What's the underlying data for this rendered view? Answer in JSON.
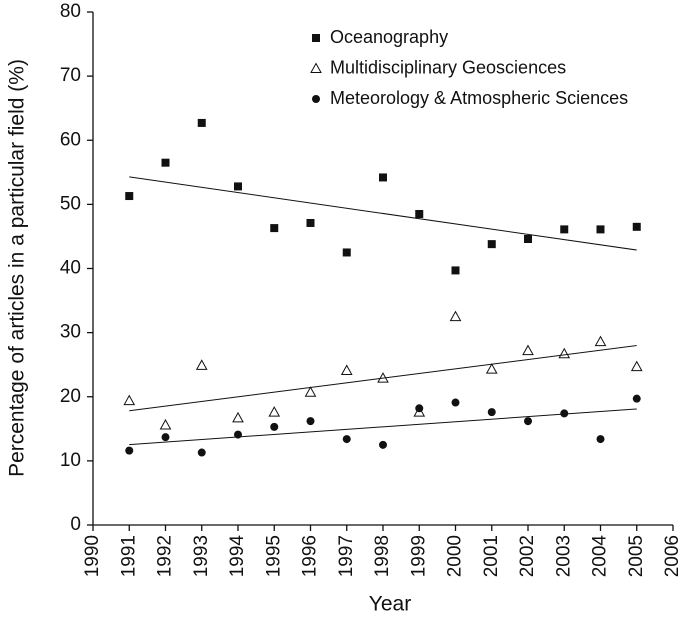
{
  "chart_data": {
    "type": "scatter",
    "x_label": "Year",
    "y_label": "Percentage of articles in a particular field (%)",
    "x": [
      1991,
      1992,
      1993,
      1994,
      1995,
      1996,
      1997,
      1998,
      1999,
      2000,
      2001,
      2002,
      2003,
      2004,
      2005
    ],
    "series": [
      {
        "name": "Oceanography",
        "color": "#111111",
        "marker": "square",
        "values": [
          51.3,
          56.5,
          62.7,
          52.8,
          46.3,
          47.1,
          42.5,
          54.2,
          48.5,
          39.7,
          43.8,
          44.6,
          46.1,
          46.1,
          46.5
        ]
      },
      {
        "name": "Multidisciplinary Geosciences",
        "color": "#111111",
        "marker": "triangle-open",
        "values": [
          19.4,
          15.6,
          24.9,
          16.7,
          17.6,
          20.7,
          24.1,
          22.9,
          17.6,
          32.5,
          24.3,
          27.2,
          26.7,
          28.6,
          24.7
        ]
      },
      {
        "name": "Meteorology & Atmospheric Sciences",
        "color": "#111111",
        "marker": "circle",
        "values": [
          11.6,
          13.7,
          11.3,
          14.1,
          15.3,
          16.2,
          13.4,
          12.5,
          18.2,
          19.1,
          17.6,
          16.2,
          17.4,
          13.4,
          19.7
        ]
      }
    ],
    "trendline": true,
    "xlim": [
      1990,
      2006
    ],
    "xticks": [
      1990,
      1991,
      1992,
      1993,
      1994,
      1995,
      1996,
      1997,
      1998,
      1999,
      2000,
      2001,
      2002,
      2003,
      2004,
      2005,
      2006
    ],
    "ylim": [
      0,
      80
    ],
    "yticks": [
      0,
      10,
      20,
      30,
      40,
      50,
      60,
      70,
      80
    ],
    "grid": false,
    "legend": "top"
  }
}
